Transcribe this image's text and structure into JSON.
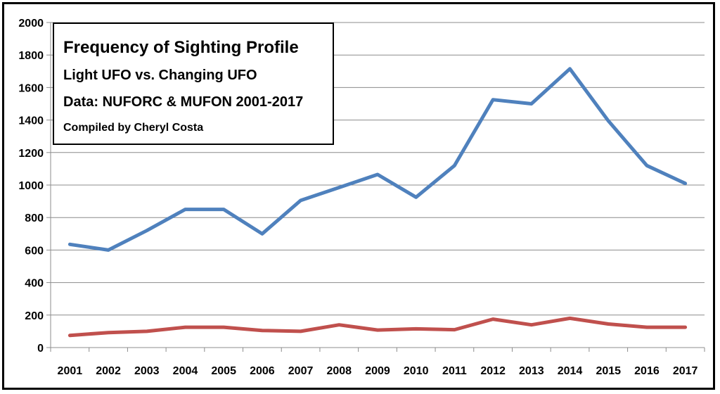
{
  "chart_data": {
    "type": "line",
    "title": "Frequency of Sighting Profile",
    "subtitle_lines": [
      "Light UFO vs. Changing UFO",
      "Data: NUFORC & MUFON 2001-2017",
      "Compiled by Cheryl Costa"
    ],
    "xlabel": "",
    "ylabel": "",
    "ylim": [
      0,
      2000
    ],
    "yticks": [
      0,
      200,
      400,
      600,
      800,
      1000,
      1200,
      1400,
      1600,
      1800,
      2000
    ],
    "categories": [
      "2001",
      "2002",
      "2003",
      "2004",
      "2005",
      "2006",
      "2007",
      "2008",
      "2009",
      "2010",
      "2011",
      "2012",
      "2013",
      "2014",
      "2015",
      "2016",
      "2017"
    ],
    "grid": true,
    "legend": "none",
    "series": [
      {
        "color": "#4f81bd",
        "values": [
          635,
          600,
          720,
          850,
          850,
          700,
          905,
          985,
          1065,
          925,
          1120,
          1525,
          1500,
          1715,
          1395,
          1120,
          1010
        ]
      },
      {
        "color": "#c0504d",
        "values": [
          75,
          92,
          100,
          125,
          125,
          105,
          100,
          140,
          108,
          115,
          110,
          175,
          140,
          180,
          145,
          125,
          125
        ]
      }
    ]
  }
}
